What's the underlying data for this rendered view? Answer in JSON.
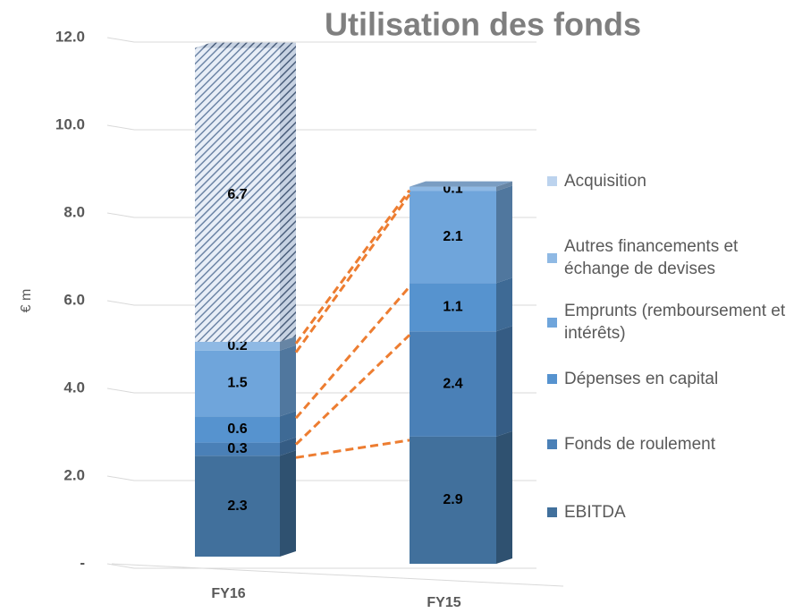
{
  "chart_data": {
    "type": "bar3d_stacked",
    "title": "Utilisation des fonds",
    "y_label": "€ m",
    "categories": [
      "FY16",
      "FY15"
    ],
    "series": [
      {
        "name": "EBITDA",
        "color": "#41709c",
        "values": [
          2.3,
          2.9
        ]
      },
      {
        "name": "Fonds de roulement",
        "color": "#4a80b7",
        "values": [
          0.3,
          2.4
        ]
      },
      {
        "name": "Dépenses en capital",
        "color": "#5693cf",
        "values": [
          0.6,
          1.1
        ]
      },
      {
        "name": "Emprunts (remboursement et intérêts)",
        "color": "#6fa5db",
        "values": [
          1.5,
          2.1
        ]
      },
      {
        "name": "Autres financements et échange de devises",
        "color": "#8fb9e4",
        "values": [
          0.2,
          0.1
        ]
      },
      {
        "name": "Acquisition",
        "color": "#bcd3ee",
        "values": [
          6.7,
          null
        ],
        "hatched": true
      }
    ],
    "ylim": [
      0,
      12
    ],
    "yticks": [
      {
        "value": 0,
        "label": "-"
      },
      {
        "value": 2,
        "label": "2.0"
      },
      {
        "value": 4,
        "label": "4.0"
      },
      {
        "value": 6,
        "label": "6.0"
      },
      {
        "value": 8,
        "label": "8.0"
      },
      {
        "value": 10,
        "label": "10.0"
      },
      {
        "value": 12,
        "label": "12.0"
      }
    ],
    "grid": true,
    "legend": "right"
  }
}
